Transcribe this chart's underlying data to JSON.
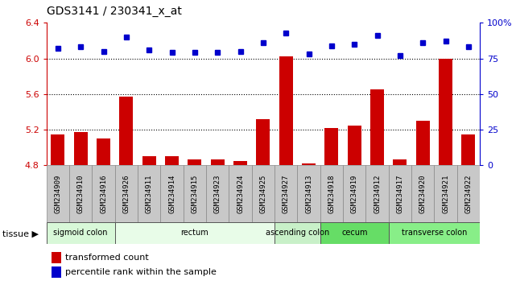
{
  "title": "GDS3141 / 230341_x_at",
  "samples": [
    "GSM234909",
    "GSM234910",
    "GSM234916",
    "GSM234926",
    "GSM234911",
    "GSM234914",
    "GSM234915",
    "GSM234923",
    "GSM234924",
    "GSM234925",
    "GSM234927",
    "GSM234913",
    "GSM234918",
    "GSM234919",
    "GSM234912",
    "GSM234917",
    "GSM234920",
    "GSM234921",
    "GSM234922"
  ],
  "bar_values": [
    5.15,
    5.17,
    5.1,
    5.57,
    4.9,
    4.9,
    4.87,
    4.87,
    4.85,
    5.32,
    6.02,
    4.82,
    5.22,
    5.25,
    5.65,
    4.87,
    5.3,
    6.0,
    5.15
  ],
  "dot_values": [
    82,
    83,
    80,
    90,
    81,
    79,
    79,
    79,
    80,
    86,
    93,
    78,
    84,
    85,
    91,
    77,
    86,
    87,
    83
  ],
  "ylim_left": [
    4.8,
    6.4
  ],
  "ylim_right": [
    0,
    100
  ],
  "yticks_left": [
    4.8,
    5.2,
    5.6,
    6.0,
    6.4
  ],
  "yticks_right": [
    0,
    25,
    50,
    75,
    100
  ],
  "ytick_labels_right": [
    "0",
    "25",
    "50",
    "75",
    "100%"
  ],
  "hlines": [
    5.2,
    5.6,
    6.0
  ],
  "bar_color": "#cc0000",
  "dot_color": "#0000cc",
  "tissue_groups": [
    {
      "label": "sigmoid colon",
      "start": 0,
      "end": 3,
      "color": "#d8f8d8"
    },
    {
      "label": "rectum",
      "start": 3,
      "end": 10,
      "color": "#e8fce8"
    },
    {
      "label": "ascending colon",
      "start": 10,
      "end": 12,
      "color": "#c8f0c8"
    },
    {
      "label": "cecum",
      "start": 12,
      "end": 15,
      "color": "#66dd66"
    },
    {
      "label": "transverse colon",
      "start": 15,
      "end": 19,
      "color": "#88ee88"
    }
  ],
  "tissue_label": "tissue",
  "legend_bar": "transformed count",
  "legend_dot": "percentile rank within the sample",
  "bg_color": "#d8d8d8",
  "plot_bg": "#ffffff",
  "tick_bg": "#c8c8c8",
  "title_fontsize": 10,
  "bar_width": 0.6
}
